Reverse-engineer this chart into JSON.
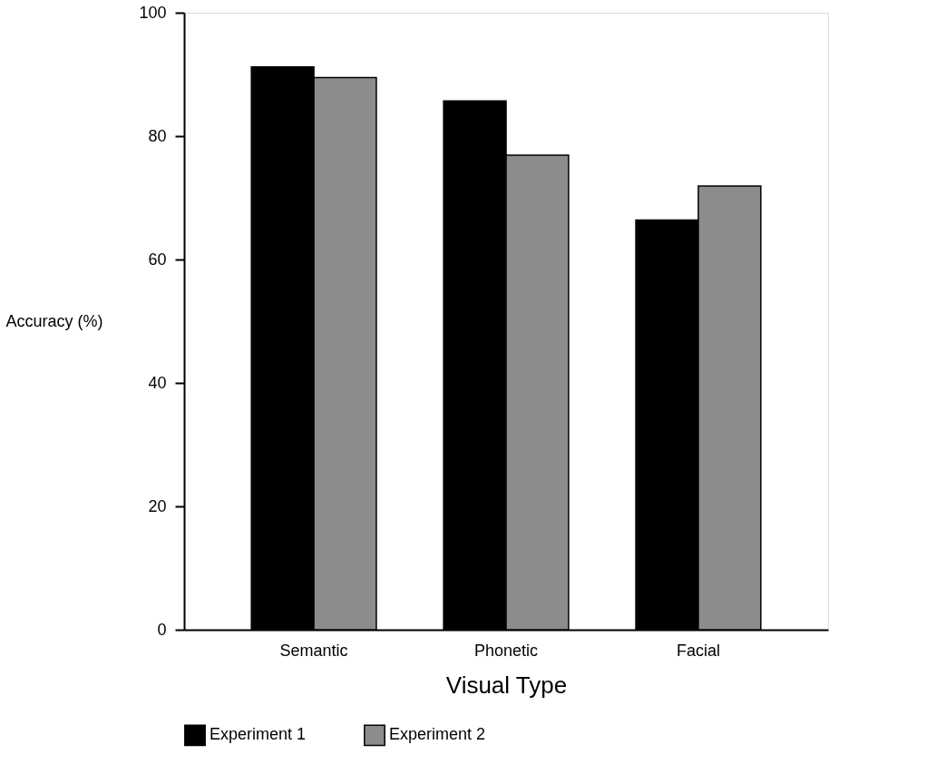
{
  "chart_data": {
    "type": "bar",
    "xlabel": "Visual Type",
    "ylabel": "Accuracy (%)",
    "categories": [
      "Semantic",
      "Phonetic",
      "Facial"
    ],
    "series": [
      {
        "name": "Experiment 1",
        "color": "#000000",
        "values": [
          91.2,
          85.7,
          66.4
        ]
      },
      {
        "name": "Experiment 2",
        "color": "#8c8c8c",
        "values": [
          89.5,
          76.9,
          71.9
        ]
      }
    ],
    "ylim": [
      0,
      100
    ],
    "yticks": [
      0,
      20,
      40,
      60,
      80,
      100
    ],
    "grid": false,
    "legend": "bottom"
  }
}
